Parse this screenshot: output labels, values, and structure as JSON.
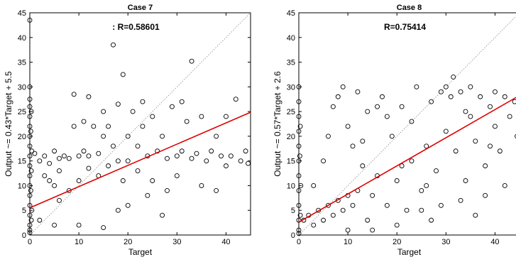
{
  "chart_data": [
    {
      "type": "scatter",
      "title": "Case 7",
      "annotation": ": R=0.58601",
      "xlabel": "Target",
      "ylabel": "Output ~= 0.43*Target + 5.5",
      "xlim": [
        0,
        45
      ],
      "ylim": [
        0,
        45
      ],
      "xticks": [
        0,
        10,
        20,
        30,
        40
      ],
      "yticks": [
        0,
        5,
        10,
        15,
        20,
        25,
        30,
        35,
        40,
        45
      ],
      "fit": {
        "slope": 0.43,
        "intercept": 5.5,
        "color": "#e00000"
      },
      "identity_line": true,
      "marker": "open-circle",
      "series": [
        {
          "points": [
            [
              0,
              43.5
            ],
            [
              0,
              30
            ],
            [
              0,
              27.5
            ],
            [
              0,
              26
            ],
            [
              0,
              24
            ],
            [
              0,
              22
            ],
            [
              0,
              20
            ],
            [
              0,
              18
            ],
            [
              0,
              16
            ],
            [
              0,
              14
            ],
            [
              0,
              12
            ],
            [
              0,
              10
            ],
            [
              0,
              8
            ],
            [
              0,
              6
            ],
            [
              0,
              4
            ],
            [
              0,
              2
            ],
            [
              0,
              1
            ],
            [
              0,
              0.5
            ],
            [
              0.3,
              25
            ],
            [
              0.2,
              21
            ],
            [
              0.4,
              17
            ],
            [
              0.3,
              13
            ],
            [
              0.2,
              9
            ],
            [
              0.4,
              5
            ],
            [
              0.3,
              3
            ],
            [
              1,
              16.5
            ],
            [
              2,
              15
            ],
            [
              3,
              16
            ],
            [
              4,
              14.5
            ],
            [
              5,
              17
            ],
            [
              6,
              15.5
            ],
            [
              7,
              16
            ],
            [
              3,
              12
            ],
            [
              5,
              10
            ],
            [
              6,
              13
            ],
            [
              8,
              9
            ],
            [
              8,
              15.5
            ],
            [
              9,
              28.5
            ],
            [
              10,
              16
            ],
            [
              10,
              11
            ],
            [
              11,
              17
            ],
            [
              12,
              13.5
            ],
            [
              12,
              16
            ],
            [
              13,
              22
            ],
            [
              14,
              16.5
            ],
            [
              14,
              12
            ],
            [
              15,
              20
            ],
            [
              15,
              25
            ],
            [
              16,
              14
            ],
            [
              16,
              22
            ],
            [
              17,
              38.5
            ],
            [
              17,
              18
            ],
            [
              18,
              26.5
            ],
            [
              18,
              15
            ],
            [
              19,
              32.5
            ],
            [
              19,
              11
            ],
            [
              20,
              20
            ],
            [
              20,
              15
            ],
            [
              21,
              25
            ],
            [
              22,
              13
            ],
            [
              22,
              18
            ],
            [
              23,
              22
            ],
            [
              24,
              16
            ],
            [
              25,
              11
            ],
            [
              25,
              24
            ],
            [
              26,
              17
            ],
            [
              27,
              20
            ],
            [
              28,
              15.5
            ],
            [
              29,
              26
            ],
            [
              30,
              16
            ],
            [
              30,
              12
            ],
            [
              31,
              17
            ],
            [
              32,
              23
            ],
            [
              33,
              15.5
            ],
            [
              33,
              35.2
            ],
            [
              34,
              16.5
            ],
            [
              35,
              24
            ],
            [
              36,
              15
            ],
            [
              37,
              17
            ],
            [
              38,
              20
            ],
            [
              39,
              16
            ],
            [
              40,
              14
            ],
            [
              40,
              24
            ],
            [
              41,
              16
            ],
            [
              42,
              27.5
            ],
            [
              43,
              15
            ],
            [
              44,
              17
            ],
            [
              44.5,
              14.5
            ],
            [
              2,
              3
            ],
            [
              5,
              2
            ],
            [
              10,
              2
            ],
            [
              15,
              1.5
            ],
            [
              18,
              5
            ],
            [
              24,
              8
            ],
            [
              27,
              4
            ],
            [
              12,
              28
            ],
            [
              23,
              27
            ],
            [
              9,
              22
            ],
            [
              11,
              23
            ],
            [
              28,
              9
            ],
            [
              35,
              10
            ],
            [
              38,
              9
            ],
            [
              6,
              7
            ],
            [
              4,
              11
            ],
            [
              20,
              6
            ],
            [
              31,
              27
            ]
          ]
        }
      ]
    },
    {
      "type": "scatter",
      "title": "Case 8",
      "annotation": "R=0.75414",
      "xlabel": "Target",
      "ylabel": "Output ~= 0.57*Target + 2.6",
      "xlim": [
        0,
        45
      ],
      "ylim": [
        0,
        45
      ],
      "xticks": [
        0,
        10,
        20,
        30,
        40
      ],
      "yticks": [
        0,
        5,
        10,
        15,
        20,
        25,
        30,
        35,
        40,
        45
      ],
      "fit": {
        "slope": 0.57,
        "intercept": 2.6,
        "color": "#e00000"
      },
      "identity_line": true,
      "marker": "open-circle",
      "series": [
        {
          "points": [
            [
              0,
              30
            ],
            [
              0,
              27
            ],
            [
              0,
              24
            ],
            [
              0,
              21
            ],
            [
              0,
              18
            ],
            [
              0,
              15
            ],
            [
              0,
              12
            ],
            [
              0,
              9
            ],
            [
              0,
              6
            ],
            [
              0,
              3
            ],
            [
              0,
              1
            ],
            [
              0,
              0.3
            ],
            [
              0.3,
              22
            ],
            [
              0.2,
              16
            ],
            [
              0.4,
              10
            ],
            [
              0.3,
              4
            ],
            [
              1,
              3
            ],
            [
              2,
              4
            ],
            [
              3,
              2
            ],
            [
              4,
              5
            ],
            [
              5,
              3
            ],
            [
              6,
              6
            ],
            [
              7,
              4
            ],
            [
              8,
              7
            ],
            [
              9,
              5
            ],
            [
              10,
              8
            ],
            [
              11,
              6
            ],
            [
              12,
              9
            ],
            [
              3,
              10
            ],
            [
              5,
              15
            ],
            [
              6,
              20
            ],
            [
              7,
              26
            ],
            [
              8,
              28
            ],
            [
              9,
              30
            ],
            [
              10,
              22
            ],
            [
              11,
              18
            ],
            [
              12,
              29
            ],
            [
              13,
              14
            ],
            [
              14,
              25
            ],
            [
              15,
              8
            ],
            [
              16,
              12
            ],
            [
              17,
              28
            ],
            [
              18,
              6
            ],
            [
              19,
              20
            ],
            [
              20,
              11
            ],
            [
              21,
              26
            ],
            [
              22,
              5
            ],
            [
              23,
              15
            ],
            [
              24,
              30
            ],
            [
              25,
              9
            ],
            [
              26,
              18
            ],
            [
              27,
              27
            ],
            [
              28,
              13
            ],
            [
              29,
              29
            ],
            [
              30,
              21
            ],
            [
              30,
              30
            ],
            [
              31,
              28
            ],
            [
              31.5,
              32
            ],
            [
              32,
              17
            ],
            [
              33,
              29
            ],
            [
              34,
              11
            ],
            [
              35,
              30
            ],
            [
              35,
              24
            ],
            [
              36,
              19
            ],
            [
              37,
              28
            ],
            [
              38,
              14
            ],
            [
              39,
              26
            ],
            [
              40,
              22
            ],
            [
              40,
              29
            ],
            [
              41,
              17
            ],
            [
              42,
              28
            ],
            [
              43,
              24
            ],
            [
              44,
              27
            ],
            [
              44.5,
              20
            ],
            [
              36,
              4
            ],
            [
              33,
              7
            ],
            [
              27,
              3
            ],
            [
              20,
              2
            ],
            [
              15,
              1
            ],
            [
              10,
              1
            ],
            [
              23,
              23
            ],
            [
              18,
              24
            ],
            [
              14,
              3
            ],
            [
              25,
              5
            ],
            [
              38,
              8
            ],
            [
              42,
              10
            ],
            [
              29,
              6
            ],
            [
              13,
              19
            ],
            [
              16,
              26
            ],
            [
              21,
              14
            ],
            [
              26,
              10
            ],
            [
              34,
              25
            ],
            [
              39,
              18
            ]
          ]
        }
      ]
    }
  ]
}
